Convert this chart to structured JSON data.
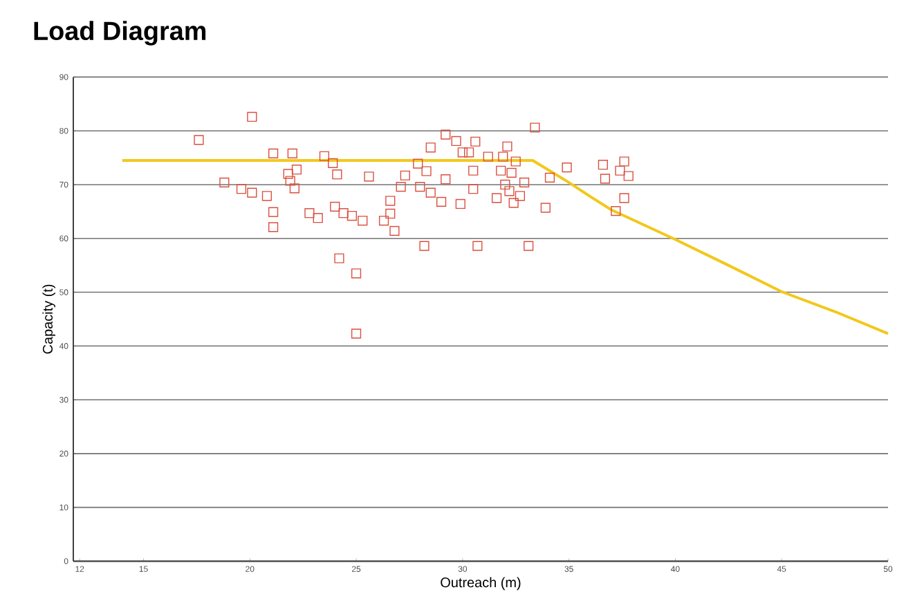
{
  "chart_data": {
    "type": "scatter",
    "title": "Load Diagram",
    "xlabel": "Outreach (m)",
    "ylabel": "Capacity (t)",
    "xlim": [
      11.7,
      50
    ],
    "ylim": [
      0,
      90
    ],
    "xticks": [
      12,
      15,
      20,
      25,
      30,
      35,
      40,
      45,
      50
    ],
    "yticks": [
      0,
      10,
      20,
      30,
      40,
      50,
      60,
      70,
      80,
      90
    ],
    "grid": "y",
    "series": [
      {
        "marker": "square",
        "color": "#d9503f",
        "x": [
          17.6,
          20.1,
          18.8,
          19.6,
          20.1,
          20.8,
          21.1,
          21.1,
          21.1,
          22.0,
          21.8,
          21.9,
          22.2,
          22.1,
          22.8,
          23.2,
          23.5,
          23.9,
          24.1,
          24.0,
          24.4,
          24.8,
          25.3,
          24.2,
          25.0,
          25.0,
          25.6,
          26.3,
          26.6,
          26.6,
          26.8,
          27.1,
          27.3,
          27.9,
          28.3,
          28.0,
          28.5,
          28.2,
          28.5,
          29.0,
          29.2,
          29.2,
          29.7,
          30.6,
          30.0,
          30.3,
          30.5,
          30.5,
          29.9,
          30.7,
          31.2,
          31.9,
          32.1,
          31.8,
          32.3,
          32.0,
          32.2,
          31.6,
          32.4,
          32.7,
          32.9,
          32.5,
          33.4,
          33.1,
          33.9,
          34.1,
          34.9,
          36.6,
          36.7,
          37.4,
          37.6,
          37.8,
          37.6,
          37.2
        ],
        "values": [
          78.3,
          82.6,
          70.4,
          69.2,
          68.5,
          67.9,
          75.8,
          64.9,
          62.1,
          75.8,
          72.0,
          70.7,
          72.8,
          69.3,
          64.7,
          63.8,
          75.3,
          74.0,
          71.9,
          65.9,
          64.7,
          64.2,
          63.3,
          56.3,
          53.5,
          42.3,
          71.5,
          63.3,
          67.0,
          64.6,
          61.4,
          69.6,
          71.7,
          73.9,
          72.5,
          69.6,
          68.5,
          58.6,
          76.9,
          66.8,
          71.0,
          79.3,
          78.1,
          78.0,
          76.0,
          76.0,
          72.6,
          69.2,
          66.4,
          58.6,
          75.2,
          75.2,
          77.1,
          72.6,
          72.2,
          70.0,
          68.8,
          67.5,
          66.6,
          67.9,
          70.4,
          74.3,
          80.6,
          58.6,
          65.7,
          71.3,
          73.2,
          73.7,
          71.1,
          72.6,
          74.3,
          71.6,
          67.5,
          65.1
        ]
      },
      {
        "type": "line",
        "marker": "none",
        "line_style": "solid",
        "color": "#f2c81a",
        "x": [
          14,
          33.3,
          35,
          36,
          37,
          40,
          42.5,
          45,
          47.5,
          50
        ],
        "values": [
          74.5,
          74.5,
          70.4,
          67.8,
          65.3,
          59.8,
          55.0,
          50.1,
          46.4,
          42.3
        ]
      }
    ]
  }
}
